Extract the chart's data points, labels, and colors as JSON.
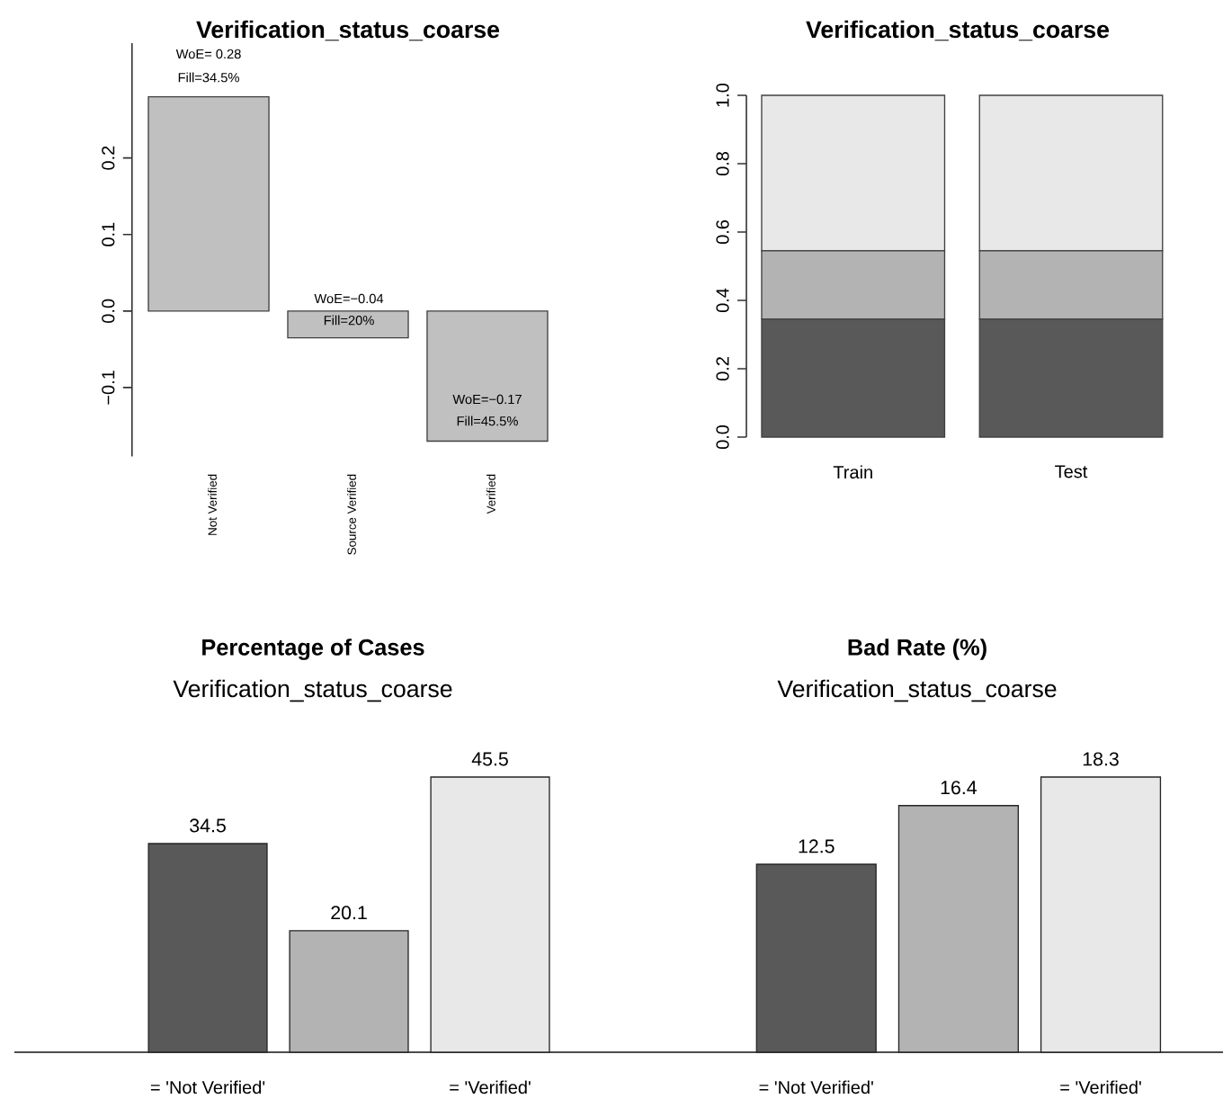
{
  "chart_data": [
    {
      "type": "bar",
      "title": "Verification_status_coarse",
      "categories": [
        "Not Verified",
        "Source Verified",
        "Verified"
      ],
      "values": [
        0.28,
        -0.035,
        -0.17
      ],
      "color": "#c0c0c0",
      "ylim": [
        -0.19,
        0.35
      ],
      "yticks": [
        {
          "value": -0.1,
          "label": "−0.1"
        },
        {
          "value": 0,
          "label": "0.0"
        },
        0.1,
        0.2
      ],
      "annotations": [
        "WoE= 0.28",
        "Fill=34.5%",
        "WoE=−0.04",
        "Fill=20%",
        "WoE=−0.17",
        "Fill=45.5%"
      ]
    },
    {
      "type": "bar",
      "stacked": true,
      "title": "Verification_status_coarse",
      "categories": [
        "Train",
        "Test"
      ],
      "ylim": [
        0,
        1
      ],
      "yticks": [
        {
          "value": 0,
          "label": "0.0"
        },
        0.2,
        0.4,
        0.6,
        0.8,
        {
          "value": 1,
          "label": "1.0"
        }
      ],
      "series": [
        {
          "color": "#595959",
          "values": [
            0.345,
            0.345
          ]
        },
        {
          "color": "#b3b3b3",
          "values": [
            0.2,
            0.2
          ]
        },
        {
          "color": "#e8e8e8",
          "values": [
            0.455,
            0.455
          ]
        }
      ]
    },
    {
      "type": "bar",
      "title": "Percentage of Cases",
      "subtitle": "Verification_status_coarse",
      "categories": [
        "= 'Not Verified'",
        null,
        "= 'Verified'"
      ],
      "values": [
        34.5,
        20.1,
        45.5
      ],
      "colors": [
        "#595959",
        "#b3b3b3",
        "#e8e8e8"
      ],
      "data_labels": true
    },
    {
      "type": "bar",
      "title": "Bad Rate (%)",
      "subtitle": "Verification_status_coarse",
      "categories": [
        "= 'Not Verified'",
        null,
        "= 'Verified'"
      ],
      "values": [
        12.5,
        16.4,
        18.3
      ],
      "colors": [
        "#595959",
        "#b3b3b3",
        "#e8e8e8"
      ],
      "data_labels": true
    }
  ]
}
